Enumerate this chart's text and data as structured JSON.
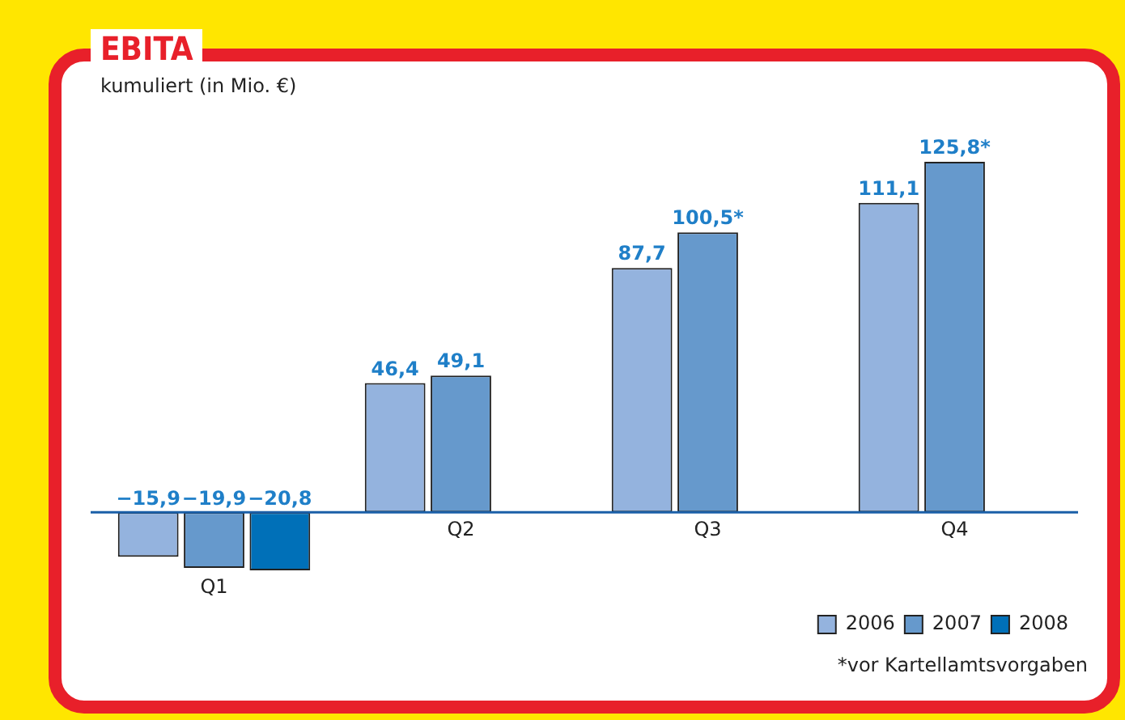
{
  "chart_data": {
    "type": "bar",
    "title": "EBITA",
    "subtitle": "kumuliert (in Mio. €)",
    "categories": [
      "Q1",
      "Q2",
      "Q3",
      "Q4"
    ],
    "series": [
      {
        "name": "2006",
        "color": "#94b3de",
        "values": [
          -15.9,
          46.4,
          87.7,
          111.1
        ],
        "value_labels": [
          "−15,9",
          "46,4",
          "87,7",
          "111,1"
        ]
      },
      {
        "name": "2007",
        "color": "#6699cc",
        "values": [
          -19.9,
          49.1,
          100.5,
          125.8
        ],
        "value_labels": [
          "−19,9",
          "49,1",
          "100,5*",
          "125,8*"
        ]
      },
      {
        "name": "2008",
        "color": "#0070b8",
        "values": [
          -20.8,
          null,
          null,
          null
        ],
        "value_labels": [
          "−20,8",
          null,
          null,
          null
        ]
      }
    ],
    "legend": "bottom right",
    "annotations": [
      "*vor Kartellamtsvorgaben"
    ]
  }
}
